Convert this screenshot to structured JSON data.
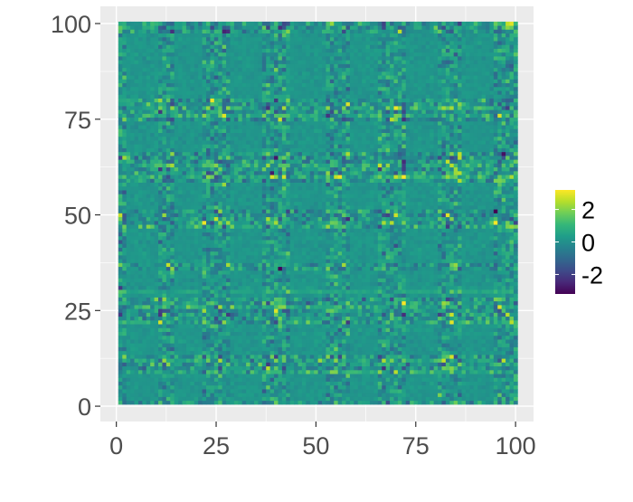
{
  "chart_data": {
    "type": "heatmap",
    "title": "",
    "xlabel": "",
    "ylabel": "",
    "x_range": [
      1,
      100
    ],
    "y_range": [
      1,
      100
    ],
    "xlim": [
      -4,
      104.5
    ],
    "ylim": [
      -4,
      104.5
    ],
    "x_ticks": [
      0,
      25,
      50,
      75,
      100
    ],
    "y_ticks": [
      0,
      25,
      50,
      75,
      100
    ],
    "x_tick_labels": [
      "0",
      "25",
      "50",
      "75",
      "100"
    ],
    "y_tick_labels": [
      "0",
      "25",
      "50",
      "75",
      "100"
    ],
    "grid": true,
    "panel_background": "#ebebeb",
    "grid_color": "#ffffff",
    "colorscale": "viridis",
    "value_range": [
      -3.2,
      3.2
    ],
    "legend": {
      "position": "right",
      "breaks": [
        2,
        0,
        -2
      ],
      "labels": [
        "2",
        "0",
        "-2"
      ]
    },
    "structure": {
      "quiet_columns": [
        [
          3,
          10
        ],
        [
          15,
          21
        ],
        [
          29,
          36
        ],
        [
          44,
          52
        ],
        [
          59,
          65
        ],
        [
          73,
          80
        ],
        [
          87,
          94
        ]
      ],
      "quiet_rows": [
        [
          2,
          8
        ],
        [
          14,
          21
        ],
        [
          29,
          35
        ],
        [
          38,
          46
        ],
        [
          52,
          58
        ],
        [
          67,
          74
        ],
        [
          81,
          97
        ]
      ],
      "bright_rows": [
        9,
        12,
        22,
        26,
        30,
        47,
        60,
        63,
        76,
        78
      ]
    }
  }
}
